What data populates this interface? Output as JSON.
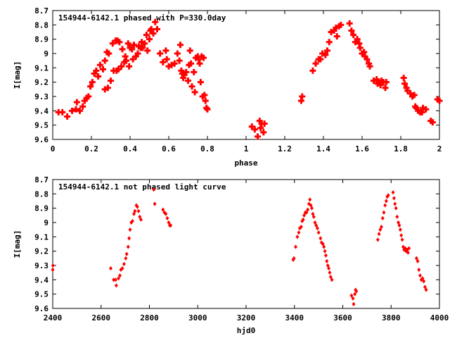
{
  "chart_data": [
    {
      "type": "scatter",
      "title": "154944-6142.1 phased with P=330.0day",
      "xlabel": "phase",
      "ylabel": "I[mag]",
      "xlim": [
        0,
        2
      ],
      "ylim": [
        9.6,
        8.7
      ],
      "y_inverted": true,
      "xticks": [
        "0",
        "0.2",
        "0.4",
        "0.6",
        "0.8",
        "1",
        "1.2",
        "1.4",
        "1.6",
        "1.8",
        "2"
      ],
      "yticks": [
        "8.7",
        "8.8",
        "8.9",
        "9",
        "9.1",
        "9.2",
        "9.3",
        "9.4",
        "9.5",
        "9.6"
      ],
      "grid": false,
      "marker_color": "#ff0000",
      "marker": "plus",
      "series": [
        {
          "points": [
            [
              0.03,
              9.41
            ],
            [
              0.05,
              9.41
            ],
            [
              0.075,
              9.44
            ],
            [
              0.1,
              9.4
            ],
            [
              0.12,
              9.39
            ],
            [
              0.125,
              9.34
            ],
            [
              0.14,
              9.4
            ],
            [
              0.155,
              9.37
            ],
            [
              0.165,
              9.33
            ],
            [
              0.175,
              9.31
            ],
            [
              0.185,
              9.3
            ],
            [
              0.195,
              9.23
            ],
            [
              0.205,
              9.2
            ],
            [
              0.215,
              9.14
            ],
            [
              0.225,
              9.12
            ],
            [
              0.235,
              9.16
            ],
            [
              0.245,
              9.08
            ],
            [
              0.26,
              9.11
            ],
            [
              0.27,
              9.05
            ],
            [
              0.27,
              9.25
            ],
            [
              0.28,
              8.99
            ],
            [
              0.285,
              9.24
            ],
            [
              0.29,
              9.0
            ],
            [
              0.3,
              9.19
            ],
            [
              0.31,
              8.93
            ],
            [
              0.315,
              9.12
            ],
            [
              0.325,
              8.91
            ],
            [
              0.33,
              9.12
            ],
            [
              0.335,
              8.91
            ],
            [
              0.34,
              9.11
            ],
            [
              0.345,
              8.92
            ],
            [
              0.355,
              9.09
            ],
            [
              0.36,
              8.97
            ],
            [
              0.37,
              9.06
            ],
            [
              0.375,
              9.02
            ],
            [
              0.38,
              9.05
            ],
            [
              0.39,
              8.93
            ],
            [
              0.395,
              9.09
            ],
            [
              0.4,
              8.96
            ],
            [
              0.41,
              8.97
            ],
            [
              0.415,
              9.04
            ],
            [
              0.42,
              8.94
            ],
            [
              0.43,
              9.02
            ],
            [
              0.44,
              9.0
            ],
            [
              0.445,
              8.95
            ],
            [
              0.455,
              8.96
            ],
            [
              0.46,
              8.92
            ],
            [
              0.465,
              8.96
            ],
            [
              0.475,
              8.93
            ],
            [
              0.485,
              8.87
            ],
            [
              0.49,
              8.98
            ],
            [
              0.5,
              8.9
            ],
            [
              0.505,
              8.84
            ],
            [
              0.51,
              8.83
            ],
            [
              0.52,
              8.86
            ],
            [
              0.53,
              8.78
            ],
            [
              0.54,
              8.83
            ],
            [
              0.555,
              9.0
            ],
            [
              0.57,
              9.06
            ],
            [
              0.585,
              8.98
            ],
            [
              0.59,
              9.04
            ],
            [
              0.6,
              9.09
            ],
            [
              0.615,
              9.08
            ],
            [
              0.63,
              9.07
            ],
            [
              0.645,
              9.0
            ],
            [
              0.655,
              9.05
            ],
            [
              0.66,
              8.94
            ],
            [
              0.665,
              9.12
            ],
            [
              0.67,
              9.14
            ],
            [
              0.675,
              9.17
            ],
            [
              0.68,
              9.15
            ],
            [
              0.69,
              9.13
            ],
            [
              0.7,
              9.19
            ],
            [
              0.705,
              9.08
            ],
            [
              0.71,
              8.98
            ],
            [
              0.715,
              9.07
            ],
            [
              0.72,
              9.23
            ],
            [
              0.73,
              9.13
            ],
            [
              0.735,
              9.27
            ],
            [
              0.74,
              9.03
            ],
            [
              0.75,
              9.02
            ],
            [
              0.755,
              9.04
            ],
            [
              0.76,
              9.07
            ],
            [
              0.765,
              9.2
            ],
            [
              0.77,
              9.02
            ],
            [
              0.775,
              9.3
            ],
            [
              0.78,
              9.03
            ],
            [
              0.785,
              9.29
            ],
            [
              0.79,
              9.33
            ],
            [
              0.795,
              9.38
            ],
            [
              0.8,
              9.39
            ],
            [
              1.03,
              9.51
            ],
            [
              1.045,
              9.53
            ],
            [
              1.06,
              9.58
            ],
            [
              1.07,
              9.47
            ],
            [
              1.075,
              9.52
            ],
            [
              1.08,
              9.49
            ],
            [
              1.09,
              9.55
            ],
            [
              1.095,
              9.49
            ],
            [
              1.285,
              9.33
            ],
            [
              1.29,
              9.3
            ],
            [
              1.345,
              9.12
            ],
            [
              1.36,
              9.07
            ],
            [
              1.375,
              9.04
            ],
            [
              1.385,
              9.04
            ],
            [
              1.395,
              9.0
            ],
            [
              1.41,
              9.01
            ],
            [
              1.42,
              8.98
            ],
            [
              1.43,
              8.92
            ],
            [
              1.44,
              8.85
            ],
            [
              1.455,
              8.84
            ],
            [
              1.465,
              8.82
            ],
            [
              1.47,
              8.88
            ],
            [
              1.48,
              8.81
            ],
            [
              1.49,
              8.8
            ],
            [
              1.535,
              8.79
            ],
            [
              1.545,
              8.84
            ],
            [
              1.555,
              8.87
            ],
            [
              1.565,
              8.92
            ],
            [
              1.575,
              8.9
            ],
            [
              1.585,
              8.93
            ],
            [
              1.59,
              8.96
            ],
            [
              1.6,
              9.0
            ],
            [
              1.61,
              8.99
            ],
            [
              1.615,
              9.02
            ],
            [
              1.625,
              9.04
            ],
            [
              1.635,
              9.07
            ],
            [
              1.64,
              9.09
            ],
            [
              1.66,
              9.19
            ],
            [
              1.675,
              9.18
            ],
            [
              1.68,
              9.21
            ],
            [
              1.685,
              9.2
            ],
            [
              1.695,
              9.22
            ],
            [
              1.7,
              9.19
            ],
            [
              1.71,
              9.2
            ],
            [
              1.72,
              9.24
            ],
            [
              1.725,
              9.2
            ],
            [
              1.815,
              9.17
            ],
            [
              1.82,
              9.21
            ],
            [
              1.83,
              9.24
            ],
            [
              1.835,
              9.26
            ],
            [
              1.85,
              9.28
            ],
            [
              1.86,
              9.3
            ],
            [
              1.87,
              9.29
            ],
            [
              1.875,
              9.37
            ],
            [
              1.88,
              9.38
            ],
            [
              1.89,
              9.4
            ],
            [
              1.9,
              9.41
            ],
            [
              1.91,
              9.41
            ],
            [
              1.915,
              9.38
            ],
            [
              1.93,
              9.39
            ],
            [
              1.955,
              9.47
            ],
            [
              1.965,
              9.48
            ],
            [
              1.99,
              9.32
            ],
            [
              2.0,
              9.33
            ]
          ]
        }
      ]
    },
    {
      "type": "scatter",
      "title": "154944-6142.1 not phased light curve",
      "xlabel": "hjd0",
      "ylabel": "I[mag]",
      "xlim": [
        2400,
        4000
      ],
      "ylim": [
        9.6,
        8.7
      ],
      "y_inverted": true,
      "xticks": [
        "2400",
        "2600",
        "2800",
        "3000",
        "3200",
        "3400",
        "3600",
        "3800",
        "4000"
      ],
      "yticks": [
        "8.7",
        "8.8",
        "8.9",
        "9",
        "9.1",
        "9.2",
        "9.3",
        "9.4",
        "9.5",
        "9.6"
      ],
      "grid": false,
      "marker_color": "#ff0000",
      "marker": "diamond",
      "series": [
        {
          "points": [
            [
              2400,
              9.33
            ],
            [
              2401,
              9.3
            ],
            [
              2640,
              9.32
            ],
            [
              2652,
              9.4
            ],
            [
              2660,
              9.4
            ],
            [
              2663,
              9.44
            ],
            [
              2672,
              9.39
            ],
            [
              2678,
              9.37
            ],
            [
              2682,
              9.33
            ],
            [
              2688,
              9.32
            ],
            [
              2695,
              9.29
            ],
            [
              2702,
              9.25
            ],
            [
              2706,
              9.22
            ],
            [
              2712,
              9.17
            ],
            [
              2716,
              9.11
            ],
            [
              2720,
              9.05
            ],
            [
              2725,
              9.0
            ],
            [
              2730,
              8.99
            ],
            [
              2736,
              8.94
            ],
            [
              2740,
              8.92
            ],
            [
              2746,
              8.88
            ],
            [
              2750,
              8.89
            ],
            [
              2755,
              8.92
            ],
            [
              2760,
              8.96
            ],
            [
              2765,
              8.98
            ],
            [
              2818,
              8.77
            ],
            [
              2822,
              8.87
            ],
            [
              2856,
              8.91
            ],
            [
              2862,
              8.93
            ],
            [
              2868,
              8.94
            ],
            [
              2874,
              8.97
            ],
            [
              2880,
              9.0
            ],
            [
              2884,
              9.02
            ],
            [
              2888,
              9.02
            ],
            [
              3395,
              9.26
            ],
            [
              3398,
              9.25
            ],
            [
              3405,
              9.17
            ],
            [
              3412,
              9.1
            ],
            [
              3418,
              9.07
            ],
            [
              3422,
              9.04
            ],
            [
              3428,
              9.03
            ],
            [
              3432,
              8.99
            ],
            [
              3436,
              8.98
            ],
            [
              3440,
              8.95
            ],
            [
              3445,
              8.93
            ],
            [
              3450,
              8.93
            ],
            [
              3455,
              8.91
            ],
            [
              3460,
              8.87
            ],
            [
              3464,
              8.84
            ],
            [
              3468,
              8.88
            ],
            [
              3472,
              8.9
            ],
            [
              3476,
              8.94
            ],
            [
              3480,
              8.96
            ],
            [
              3485,
              9.0
            ],
            [
              3490,
              9.02
            ],
            [
              3495,
              9.04
            ],
            [
              3500,
              9.07
            ],
            [
              3508,
              9.11
            ],
            [
              3512,
              9.14
            ],
            [
              3518,
              9.15
            ],
            [
              3522,
              9.17
            ],
            [
              3526,
              9.2
            ],
            [
              3530,
              9.23
            ],
            [
              3534,
              9.27
            ],
            [
              3538,
              9.3
            ],
            [
              3542,
              9.32
            ],
            [
              3546,
              9.35
            ],
            [
              3550,
              9.38
            ],
            [
              3555,
              9.4
            ],
            [
              3636,
              9.51
            ],
            [
              3642,
              9.53
            ],
            [
              3645,
              9.57
            ],
            [
              3650,
              9.5
            ],
            [
              3653,
              9.47
            ],
            [
              3656,
              9.48
            ],
            [
              3745,
              9.12
            ],
            [
              3750,
              9.08
            ],
            [
              3755,
              9.05
            ],
            [
              3760,
              9.03
            ],
            [
              3765,
              8.97
            ],
            [
              3770,
              8.93
            ],
            [
              3775,
              8.88
            ],
            [
              3780,
              8.85
            ],
            [
              3784,
              8.82
            ],
            [
              3788,
              8.81
            ],
            [
              3808,
              8.79
            ],
            [
              3812,
              8.83
            ],
            [
              3816,
              8.87
            ],
            [
              3820,
              8.9
            ],
            [
              3825,
              8.96
            ],
            [
              3830,
              9.0
            ],
            [
              3834,
              9.02
            ],
            [
              3838,
              9.05
            ],
            [
              3842,
              9.09
            ],
            [
              3846,
              9.12
            ],
            [
              3850,
              9.17
            ],
            [
              3854,
              9.19
            ],
            [
              3858,
              9.18
            ],
            [
              3862,
              9.2
            ],
            [
              3866,
              9.19
            ],
            [
              3870,
              9.21
            ],
            [
              3874,
              9.18
            ],
            [
              3905,
              9.25
            ],
            [
              3910,
              9.27
            ],
            [
              3915,
              9.33
            ],
            [
              3920,
              9.37
            ],
            [
              3925,
              9.4
            ],
            [
              3930,
              9.39
            ],
            [
              3935,
              9.41
            ],
            [
              3940,
              9.45
            ],
            [
              3945,
              9.47
            ]
          ]
        }
      ]
    }
  ]
}
